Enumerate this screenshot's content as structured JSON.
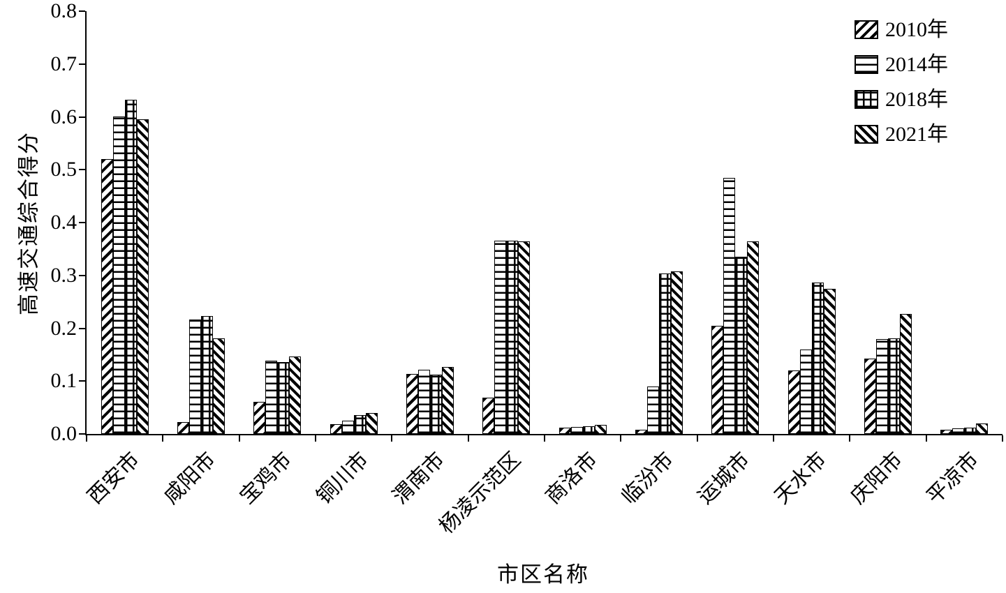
{
  "chart_data": {
    "type": "bar",
    "title": "",
    "xlabel": "市区名称",
    "ylabel": "高速交通综合得分",
    "ylim": [
      0,
      0.8
    ],
    "ytick_step": 0.1,
    "grid": false,
    "legend_position": "top-right",
    "categories": [
      "西安市",
      "咸阳市",
      "宝鸡市",
      "铜川市",
      "渭南市",
      "杨凌示范区",
      "商洛市",
      "临汾市",
      "运城市",
      "天水市",
      "庆阳市",
      "平凉市"
    ],
    "series": [
      {
        "name": "2010年",
        "pattern": "diagonal-forward-hatch",
        "values": [
          0.52,
          0.022,
          0.061,
          0.019,
          0.114,
          0.069,
          0.012,
          0.008,
          0.204,
          0.12,
          0.143,
          0.008
        ]
      },
      {
        "name": "2014年",
        "pattern": "horizontal-lines-hatch",
        "values": [
          0.601,
          0.217,
          0.139,
          0.025,
          0.122,
          0.366,
          0.013,
          0.09,
          0.485,
          0.16,
          0.179,
          0.011
        ]
      },
      {
        "name": "2018年",
        "pattern": "grid-crosshatch",
        "values": [
          0.633,
          0.223,
          0.136,
          0.036,
          0.112,
          0.366,
          0.015,
          0.303,
          0.335,
          0.287,
          0.181,
          0.012
        ]
      },
      {
        "name": "2021年",
        "pattern": "diagonal-back-hatch",
        "values": [
          0.595,
          0.181,
          0.146,
          0.04,
          0.127,
          0.364,
          0.017,
          0.307,
          0.365,
          0.275,
          0.227,
          0.02
        ]
      }
    ]
  }
}
